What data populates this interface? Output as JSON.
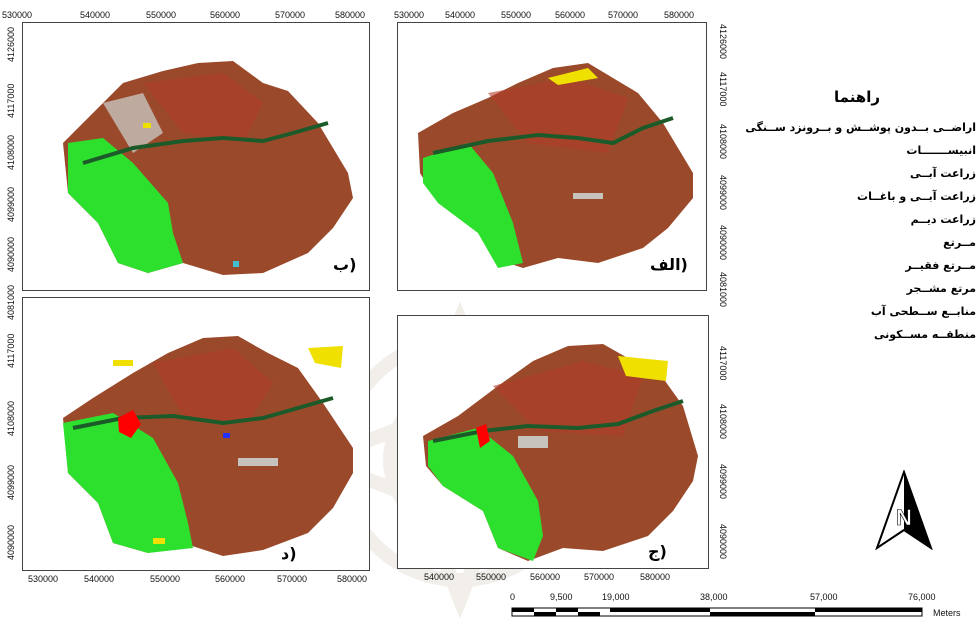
{
  "legend": {
    "title": "راهنما",
    "items": [
      {
        "label": "اراضــی بــدون پوشــش و بــرونزد ســنگی",
        "color": "#c8c2bd"
      },
      {
        "label": "انبیســـــــات",
        "color": "#f0e000"
      },
      {
        "label": "زراعت آبــی",
        "color": "#1aa61a"
      },
      {
        "label": "زراعت آبــی و باغــات",
        "color": "#1d5a2a"
      },
      {
        "label": "زراعت دیــم",
        "color": "#a9812b"
      },
      {
        "label": "مــرتع",
        "color": "#9a4a2a"
      },
      {
        "label": "مــرتع فقیــر",
        "color": "#c9a48a"
      },
      {
        "label": "مرتع مشــجر",
        "color": "#b23c2c"
      },
      {
        "label": "منابــع ســطحی آب",
        "color": "#2030ff"
      },
      {
        "label": "منطقــه مســکونی",
        "color": "#ff0000"
      }
    ]
  },
  "panels": [
    {
      "label": "ب)",
      "x_ticks": [
        "530000",
        "540000",
        "550000",
        "560000",
        "570000",
        "580000"
      ],
      "y_ticks": [
        "4126000",
        "4117000",
        "4108000",
        "4099000",
        "4090000",
        "4081000"
      ]
    },
    {
      "label": "الف)",
      "x_ticks": [
        "530000",
        "540000",
        "550000",
        "560000",
        "570000",
        "580000"
      ],
      "y_ticks": [
        "4126000",
        "4117000",
        "4108000",
        "4099000",
        "4090000",
        "4081000"
      ]
    },
    {
      "label": "د)",
      "x_ticks": [
        "530000",
        "540000",
        "550000",
        "560000",
        "570000",
        "580000"
      ],
      "y_ticks": [
        "4117000",
        "4108000",
        "4099000",
        "4090000"
      ]
    },
    {
      "label": "ج)",
      "x_ticks": [
        "540000",
        "550000",
        "560000",
        "570000",
        "580000"
      ],
      "y_ticks": [
        "4117000",
        "4108000",
        "4099000",
        "4090000"
      ]
    }
  ],
  "scale_bar": {
    "labels": [
      "0",
      "9,500",
      "19,000",
      "38,000",
      "57,000",
      "76,000"
    ],
    "unit": "Meters"
  },
  "colors": {
    "base": "#9a4a2a",
    "rangeland_dark": "#b23c2c",
    "bare": "#c8c2bd",
    "irrigated": "#2ee02e",
    "orchards": "#1d5a2a",
    "yellow": "#f0e000",
    "residential": "#ff0000",
    "water": "#2030ff"
  }
}
